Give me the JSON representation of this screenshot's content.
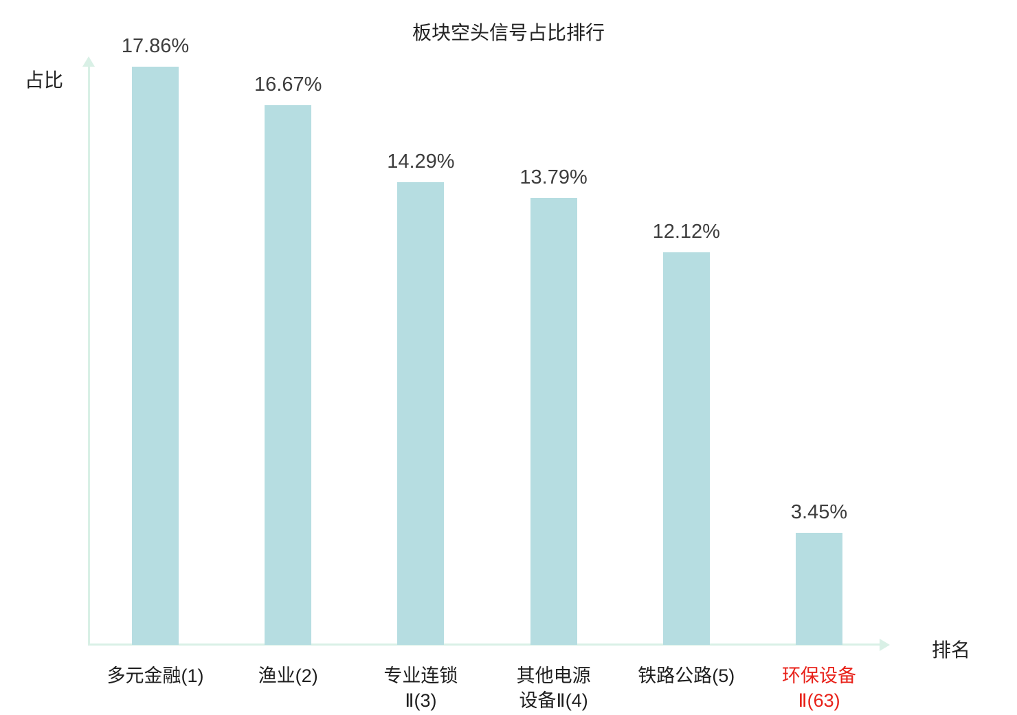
{
  "chart_data": {
    "type": "bar",
    "title": "板块空头信号占比排行",
    "ylabel": "占比",
    "xlabel": "排名",
    "categories": [
      "多元金融(1)",
      "渔业(2)",
      "专业连锁\nⅡ(3)",
      "其他电源\n设备Ⅱ(4)",
      "铁路公路(5)",
      "环保设备\nⅡ(63)"
    ],
    "values": [
      17.86,
      16.67,
      14.29,
      13.79,
      12.12,
      3.45
    ],
    "value_labels": [
      "17.86%",
      "16.67%",
      "14.29%",
      "13.79%",
      "12.12%",
      "3.45%"
    ],
    "highlight_index": 5,
    "ylim": [
      0,
      19
    ],
    "grid": false,
    "legend": false,
    "colors": {
      "bar": "#b6dde1",
      "axis": "#d9f0e6",
      "value_label": "#3d3d3d",
      "category_label": "#1f1f1f",
      "highlight": "#e8221a",
      "background": "#ffffff"
    }
  }
}
